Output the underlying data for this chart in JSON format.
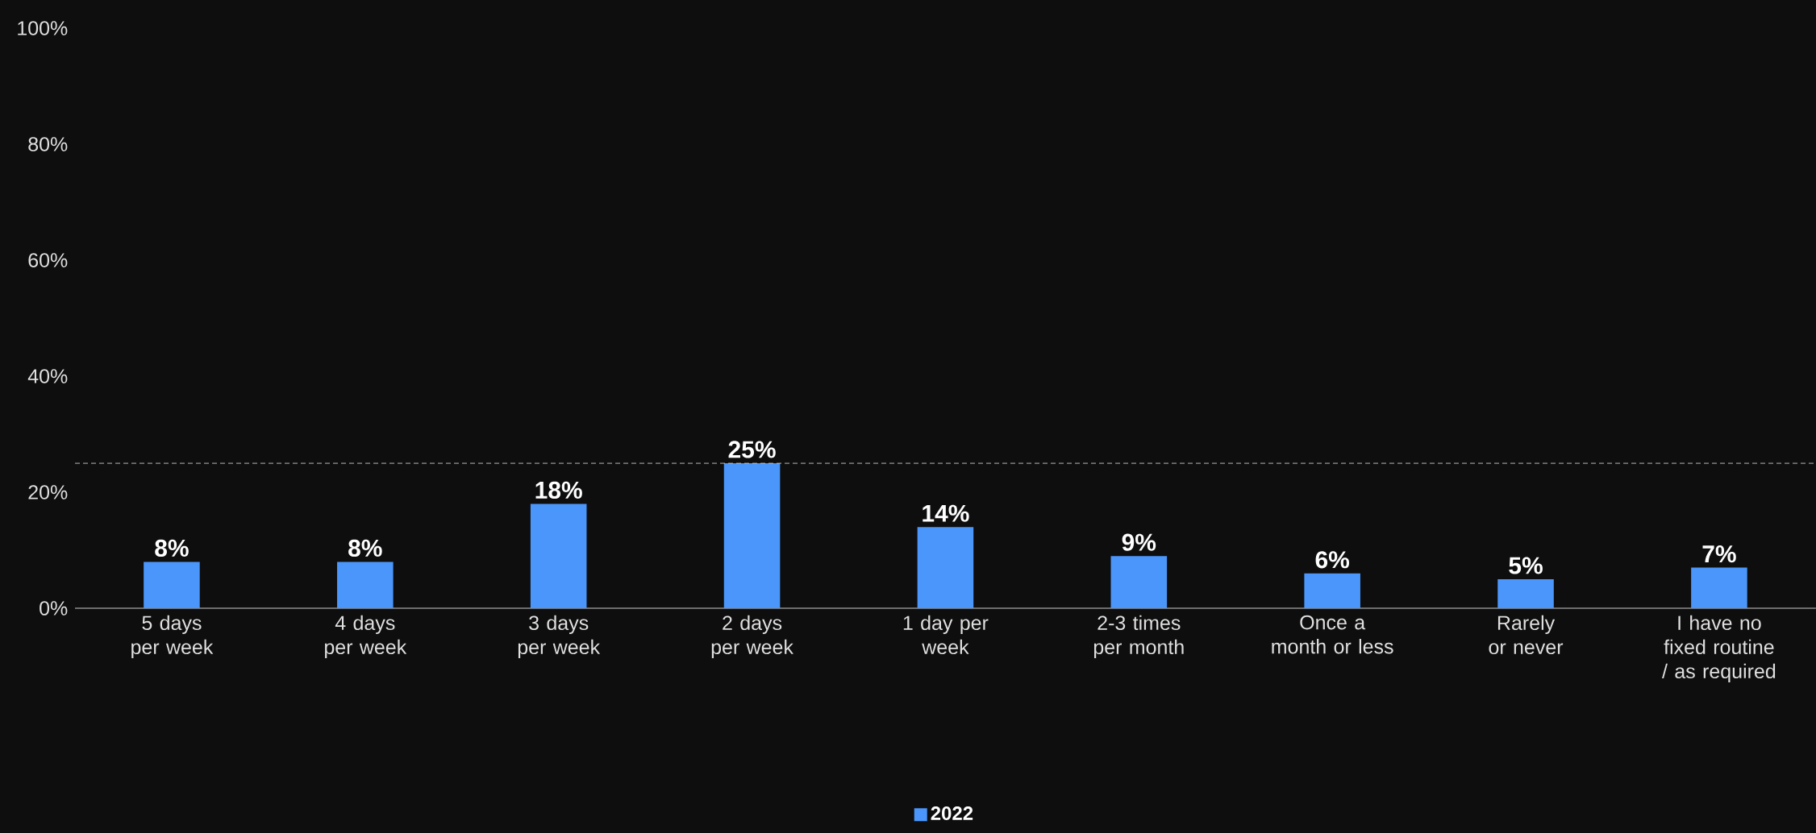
{
  "chart_data": {
    "type": "bar",
    "categories": [
      "5 days per week",
      "4 days per week",
      "3 days per week",
      "2 days per week",
      "1 day per week",
      "2-3 times per month",
      "Once a month or less",
      "Rarely or never",
      "I have no fixed routine / as required"
    ],
    "series": [
      {
        "name": "2022",
        "color": "#4a96fa",
        "values": [
          8,
          8,
          18,
          25,
          14,
          9,
          6,
          5,
          7
        ],
        "value_labels": [
          "8%",
          "8%",
          "18%",
          "25%",
          "14%",
          "9%",
          "6%",
          "5%",
          "7%"
        ]
      }
    ],
    "ylim": [
      0,
      100
    ],
    "yticks": [
      {
        "value": 0,
        "label": "0%"
      },
      {
        "value": 20,
        "label": "20%"
      },
      {
        "value": 40,
        "label": "40%"
      },
      {
        "value": 60,
        "label": "60%"
      },
      {
        "value": 80,
        "label": "80%"
      },
      {
        "value": 100,
        "label": "100%"
      }
    ],
    "ref_lines": [
      {
        "axis": "y",
        "value": 25,
        "color": "#d0d0d0",
        "line_style": "dashed"
      }
    ],
    "grid": false,
    "legend": "bottom"
  }
}
